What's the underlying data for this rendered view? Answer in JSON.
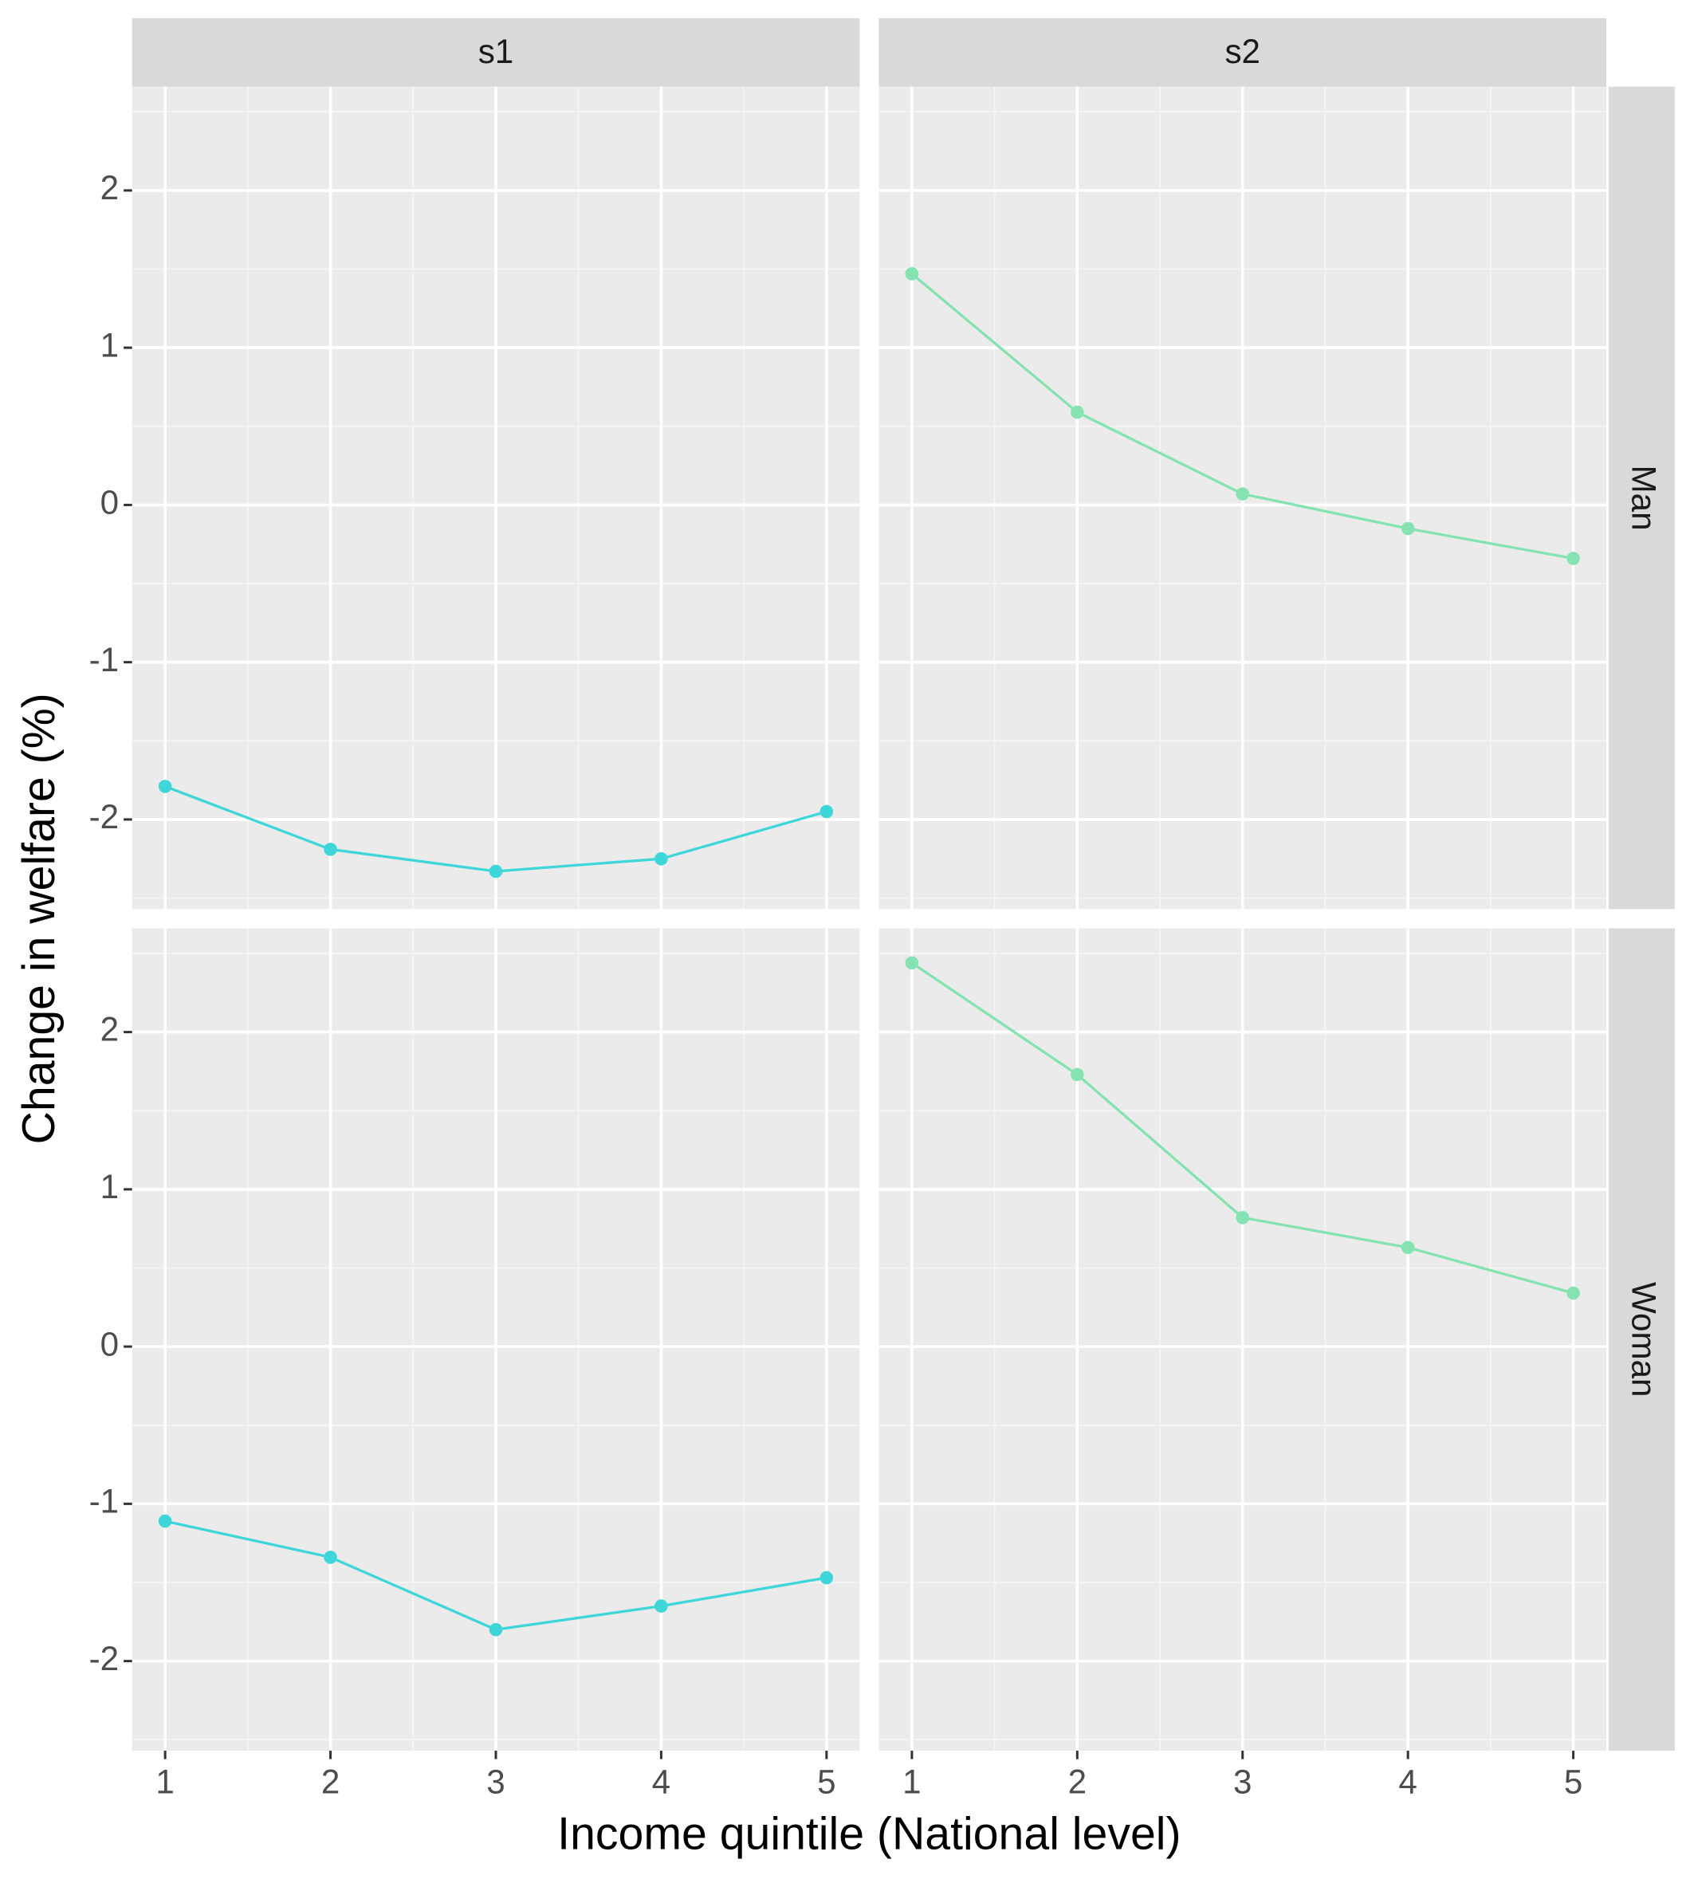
{
  "chart_data": {
    "type": "line",
    "x_label": "Income quintile (National level)",
    "y_label": "Change in welfare (%)",
    "columns": [
      "s1",
      "s2"
    ],
    "rows": [
      "Man",
      "Woman"
    ],
    "x": [
      1,
      2,
      3,
      4,
      5
    ],
    "xlim": [
      0.8,
      5.2
    ],
    "xticks": [
      1,
      2,
      3,
      4,
      5
    ],
    "ylim": [
      -2.57,
      2.66
    ],
    "yticks": [
      -2,
      -1,
      0,
      1,
      2
    ],
    "grid": true,
    "panels": [
      [
        {
          "color": "#3fd6d9",
          "values": [
            -1.79,
            -2.19,
            -2.33,
            -2.25,
            -1.95
          ]
        },
        {
          "color": "#84e3b1",
          "values": [
            1.47,
            0.59,
            0.07,
            -0.15,
            -0.34
          ]
        }
      ],
      [
        {
          "color": "#3fd6d9",
          "values": [
            -1.11,
            -1.34,
            -1.8,
            -1.65,
            -1.47
          ]
        },
        {
          "color": "#84e3b1",
          "values": [
            2.44,
            1.73,
            0.82,
            0.63,
            0.34
          ]
        }
      ]
    ]
  }
}
